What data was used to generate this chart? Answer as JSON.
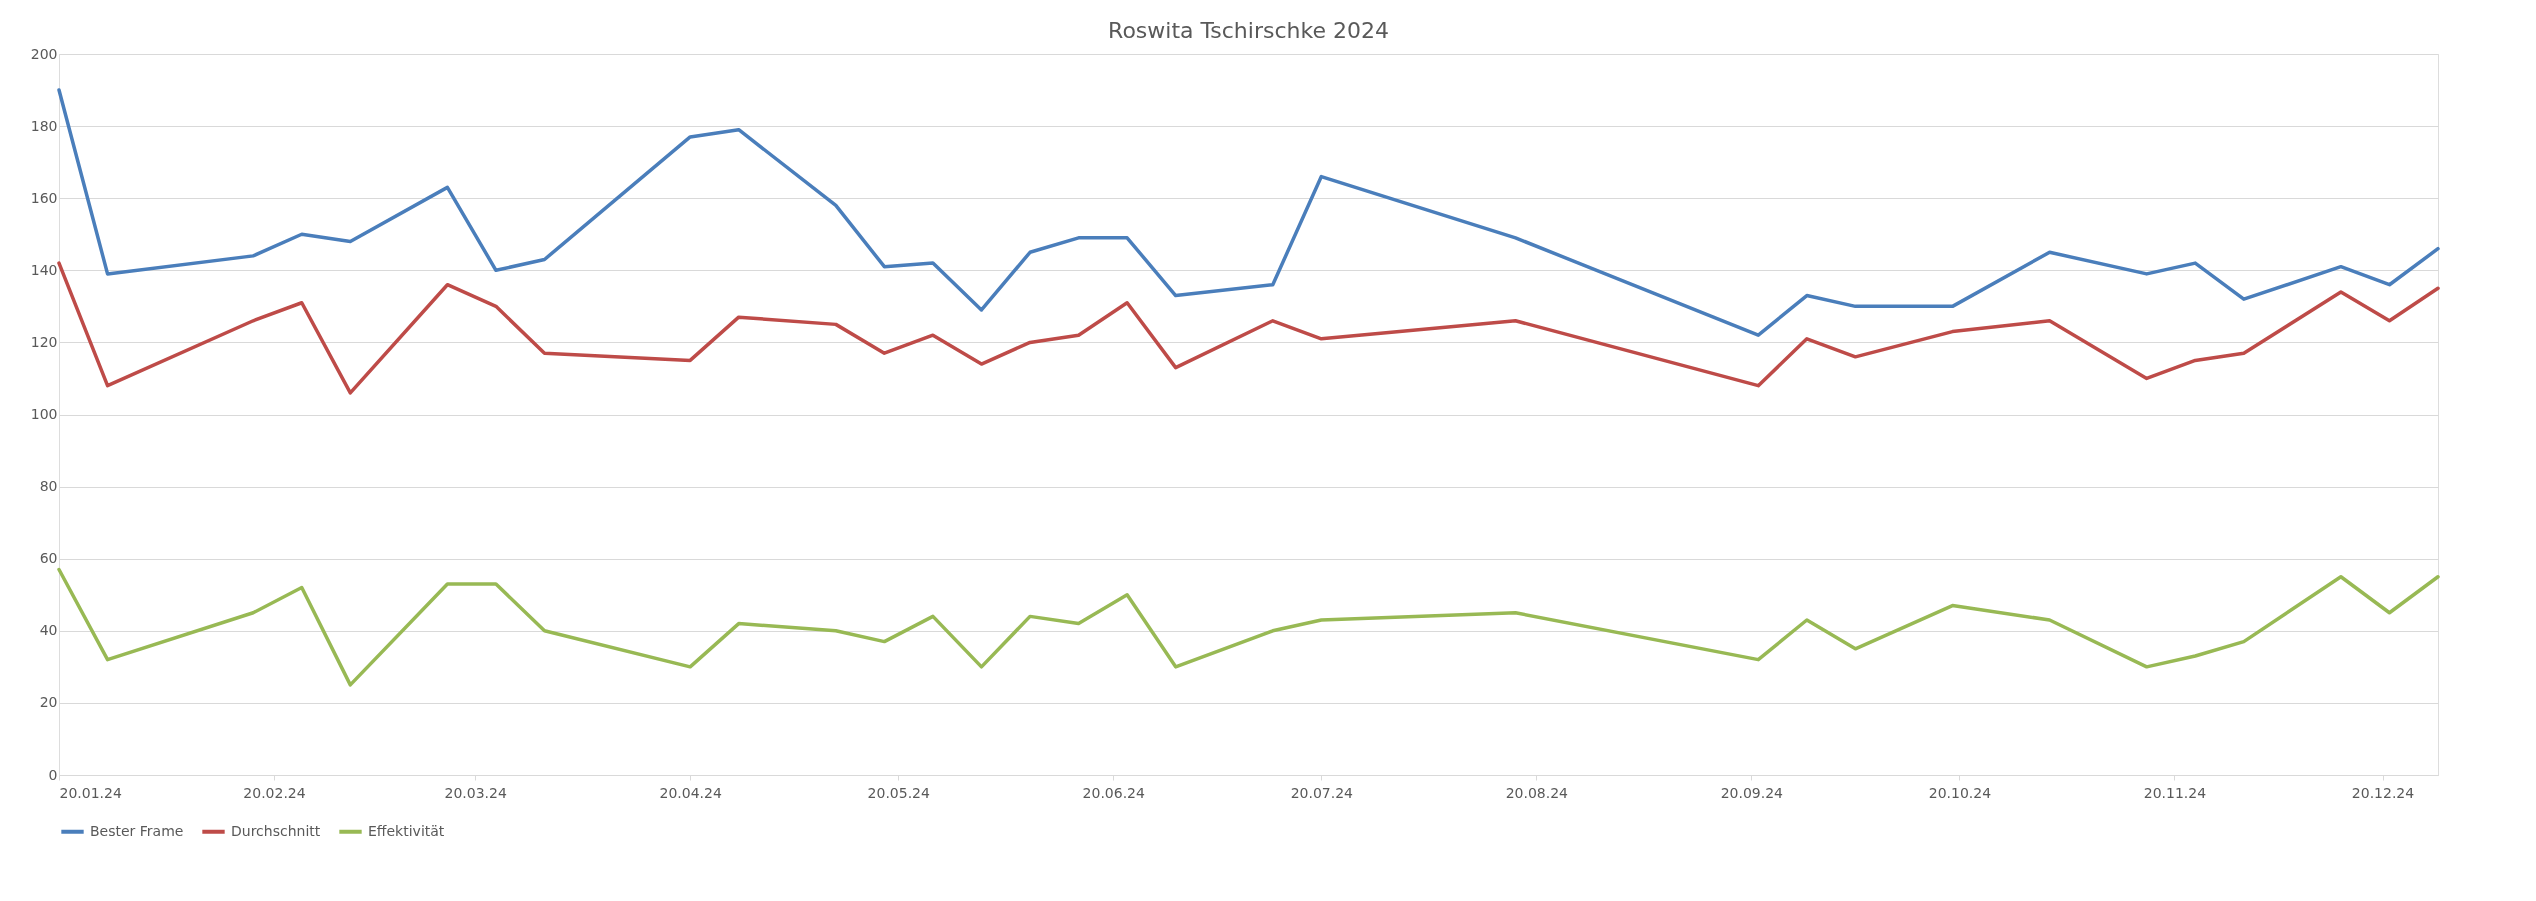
{
  "chart_data": {
    "type": "line",
    "title": "Roswita Tschirschke 2024",
    "x": [
      "2024-01-20",
      "2024-01-27",
      "2024-02-17",
      "2024-02-24",
      "2024-03-02",
      "2024-03-16",
      "2024-03-23",
      "2024-03-30",
      "2024-04-20",
      "2024-04-27",
      "2024-05-11",
      "2024-05-18",
      "2024-05-25",
      "2024-06-01",
      "2024-06-08",
      "2024-06-15",
      "2024-06-22",
      "2024-06-29",
      "2024-07-13",
      "2024-07-20",
      "2024-08-17",
      "2024-09-21",
      "2024-09-28",
      "2024-10-05",
      "2024-10-19",
      "2024-11-02",
      "2024-11-16",
      "2024-11-23",
      "2024-11-30",
      "2024-12-14",
      "2024-12-21",
      "2024-12-28"
    ],
    "series": [
      {
        "name": "Bester Frame",
        "color": "#4a7ebb",
        "values": [
          190,
          139,
          144,
          150,
          148,
          163,
          140,
          143,
          177,
          179,
          158,
          141,
          142,
          129,
          145,
          149,
          149,
          133,
          136,
          166,
          149,
          122,
          133,
          130,
          130,
          145,
          139,
          142,
          132,
          141,
          136,
          146
        ]
      },
      {
        "name": "Durchschnitt",
        "color": "#be4b48",
        "values": [
          142,
          108,
          126,
          131,
          106,
          136,
          130,
          117,
          115,
          127,
          125,
          117,
          122,
          114,
          120,
          122,
          131,
          113,
          126,
          121,
          126,
          108,
          121,
          116,
          123,
          126,
          110,
          115,
          117,
          134,
          126,
          135
        ]
      },
      {
        "name": "Effektivität",
        "color": "#98b954",
        "values": [
          57,
          32,
          45,
          52,
          25,
          53,
          53,
          40,
          30,
          42,
          40,
          37,
          44,
          30,
          44,
          42,
          50,
          30,
          40,
          43,
          45,
          32,
          43,
          35,
          47,
          43,
          30,
          33,
          37,
          55,
          45,
          55
        ]
      }
    ],
    "xlim": [
      "2024-01-20",
      "2024-12-28"
    ],
    "xticks": [
      {
        "value": "2024-01-20",
        "label": "20.01.24"
      },
      {
        "value": "2024-02-20",
        "label": "20.02.24"
      },
      {
        "value": "2024-03-20",
        "label": "20.03.24"
      },
      {
        "value": "2024-04-20",
        "label": "20.04.24"
      },
      {
        "value": "2024-05-20",
        "label": "20.05.24"
      },
      {
        "value": "2024-06-20",
        "label": "20.06.24"
      },
      {
        "value": "2024-07-20",
        "label": "20.07.24"
      },
      {
        "value": "2024-08-20",
        "label": "20.08.24"
      },
      {
        "value": "2024-09-20",
        "label": "20.09.24"
      },
      {
        "value": "2024-10-20",
        "label": "20.10.24"
      },
      {
        "value": "2024-11-20",
        "label": "20.11.24"
      },
      {
        "value": "2024-12-20",
        "label": "20.12.24"
      }
    ],
    "ylim": [
      0,
      200
    ],
    "yticks": [
      0,
      20,
      40,
      60,
      80,
      100,
      120,
      140,
      160,
      180,
      200
    ],
    "grid": "y",
    "legend": "bottom",
    "marker": "none",
    "line_style": "solid"
  }
}
